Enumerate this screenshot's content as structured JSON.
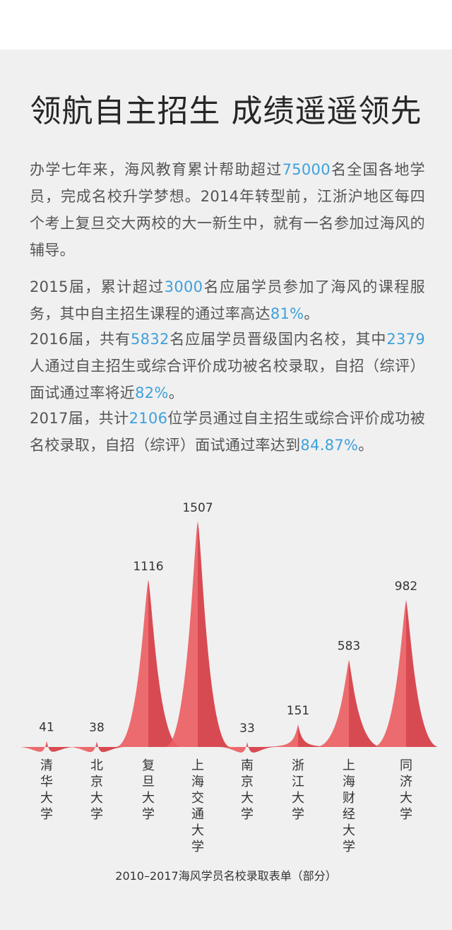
{
  "title": "领航自主招生 成绩遥遥领先",
  "intro": {
    "p1": [
      "办学七年来，海风教育累计帮助超过",
      "75000",
      "名全国各地学员，完成名校升学梦想。2014年转型前，江浙沪地区每四个考上复旦交大两校的大一新生中，就有一名参加过海风的辅导。"
    ],
    "p2": [
      "2015届，累计超过",
      "3000",
      "名应届学员参加了海风的课程服务，其中自主招生课程的通过率高达",
      "81%",
      "。"
    ],
    "p3": [
      "2016届，共有",
      "5832",
      "名应届学员晋级国内名校，其中",
      "2379",
      "人通过自主招生或综合评价成功被名校录取，自招（综评）面试通过率将近",
      "82%",
      "。"
    ],
    "p4": [
      "2017届，共计",
      "2106",
      "位学员通过自主招生或综合评价成功被名校录取，自招（综评）面试通过率达到",
      "84.87%",
      "。"
    ]
  },
  "colors": {
    "highlight": "#3ea0dc",
    "peak_light": "#ec6063",
    "peak_dark": "#d63c44",
    "panel_bg": "#f0f0f0",
    "text": "#555555"
  },
  "chart_data": {
    "type": "area",
    "categories": [
      "清华大学",
      "北京大学",
      "复旦大学",
      "上海交通大学",
      "南京大学",
      "浙江大学",
      "上海财经大学",
      "同济大学"
    ],
    "values": [
      41,
      38,
      1116,
      1507,
      33,
      151,
      583,
      982
    ],
    "value_labels": [
      "41",
      "38",
      "1116",
      "1507",
      "33",
      "151",
      "583",
      "982"
    ],
    "ylim": [
      0,
      1507
    ],
    "grid": false,
    "legend": "none",
    "caption": "2010–2017海风学员名校录取表单（部分）"
  }
}
